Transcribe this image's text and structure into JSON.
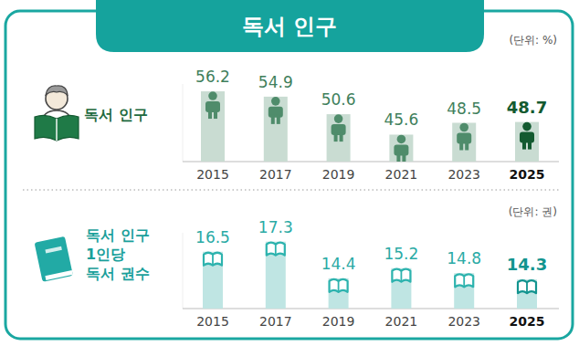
{
  "header": {
    "title": "독서 인구"
  },
  "chart_data": [
    {
      "type": "bar",
      "title": "독서 인구",
      "subtitle": "(단위: %)",
      "categories": [
        "2015",
        "2017",
        "2019",
        "2021",
        "2023",
        "2025"
      ],
      "values": [
        56.2,
        54.9,
        50.6,
        45.6,
        48.5,
        48.7
      ],
      "colors": [
        "#4f8c6b",
        "#4f8c6b",
        "#4f8c6b",
        "#4f8c6b",
        "#4f8c6b",
        "#135a30"
      ],
      "ylim": [
        39,
        58
      ],
      "data_labels": true,
      "tick_labels": "x",
      "grid": false
    },
    {
      "type": "bar",
      "title": "독서 인구\n1인당\n독서 권수",
      "subtitle": "(단위: 권)",
      "categories": [
        "2015",
        "2017",
        "2019",
        "2021",
        "2023",
        "2025"
      ],
      "values": [
        16.5,
        17.3,
        14.4,
        15.2,
        14.8,
        14.3
      ],
      "colors": [
        "#2db3ae",
        "#2db3ae",
        "#2db3ae",
        "#2db3ae",
        "#2db3ae",
        "#12948f"
      ],
      "ylim": [
        12,
        18
      ],
      "data_labels": true,
      "tick_labels": "x",
      "grid": false
    }
  ]
}
